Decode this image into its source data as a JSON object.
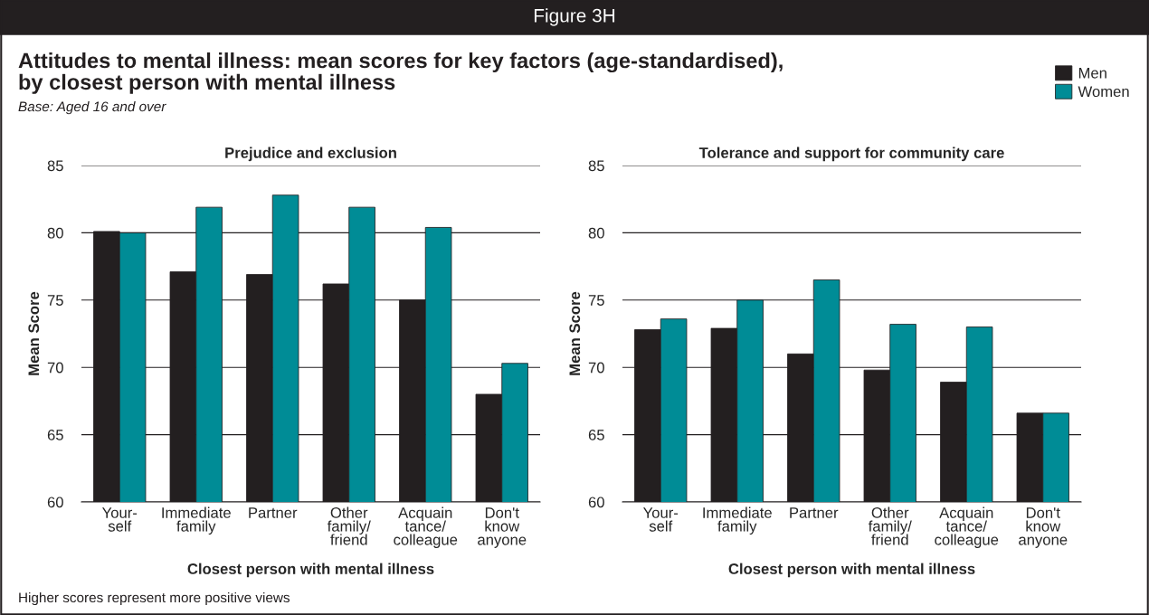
{
  "chart_data": [
    {
      "type": "bar",
      "title": "Prejudice and exclusion",
      "xlabel": "Closest person with mental illness",
      "ylabel": "Mean Score",
      "annotations": [
        "Figure 3H",
        "Attitudes to mental illness: mean scores for key factors (age-standardised),\nby closest person with mental illness",
        "Base: Aged 16 and over",
        "Higher scores represent more positive views"
      ],
      "categories": [
        "Your-\nself",
        "Immediate\nfamily",
        "Partner",
        "Other\nfamily/\nfriend",
        "Acquain\ntance/\ncolleague",
        "Don't\nknow\nanyone"
      ],
      "series": [
        {
          "name": "Men",
          "color": "#231f20",
          "values": [
            80.1,
            77.1,
            76.9,
            76.2,
            75.0,
            68.0
          ]
        },
        {
          "name": "Women",
          "color": "#008c96",
          "values": [
            80.0,
            81.9,
            82.8,
            81.9,
            80.4,
            70.3
          ]
        }
      ],
      "ylim": [
        60,
        85
      ],
      "yticks": [
        60,
        65,
        70,
        75,
        80,
        85
      ],
      "grid": "y",
      "legend": "top right"
    },
    {
      "type": "bar",
      "title": "Tolerance and support for community care",
      "xlabel": "Closest person with mental illness",
      "ylabel": "Mean Score",
      "categories": [
        "Your-\nself",
        "Immediate\nfamily",
        "Partner",
        "Other\nfamily/\nfriend",
        "Acquain\ntance/\ncolleague",
        "Don't\nknow\nanyone"
      ],
      "series": [
        {
          "color": "#231f20",
          "values": [
            72.8,
            72.9,
            71.0,
            69.8,
            68.9,
            66.6
          ]
        },
        {
          "color": "#008c96",
          "values": [
            73.6,
            75.0,
            76.5,
            73.2,
            73.0,
            66.6
          ]
        }
      ],
      "ylim": [
        60,
        85
      ],
      "yticks": [
        60,
        65,
        70,
        75,
        80,
        85
      ],
      "grid": "y"
    }
  ]
}
